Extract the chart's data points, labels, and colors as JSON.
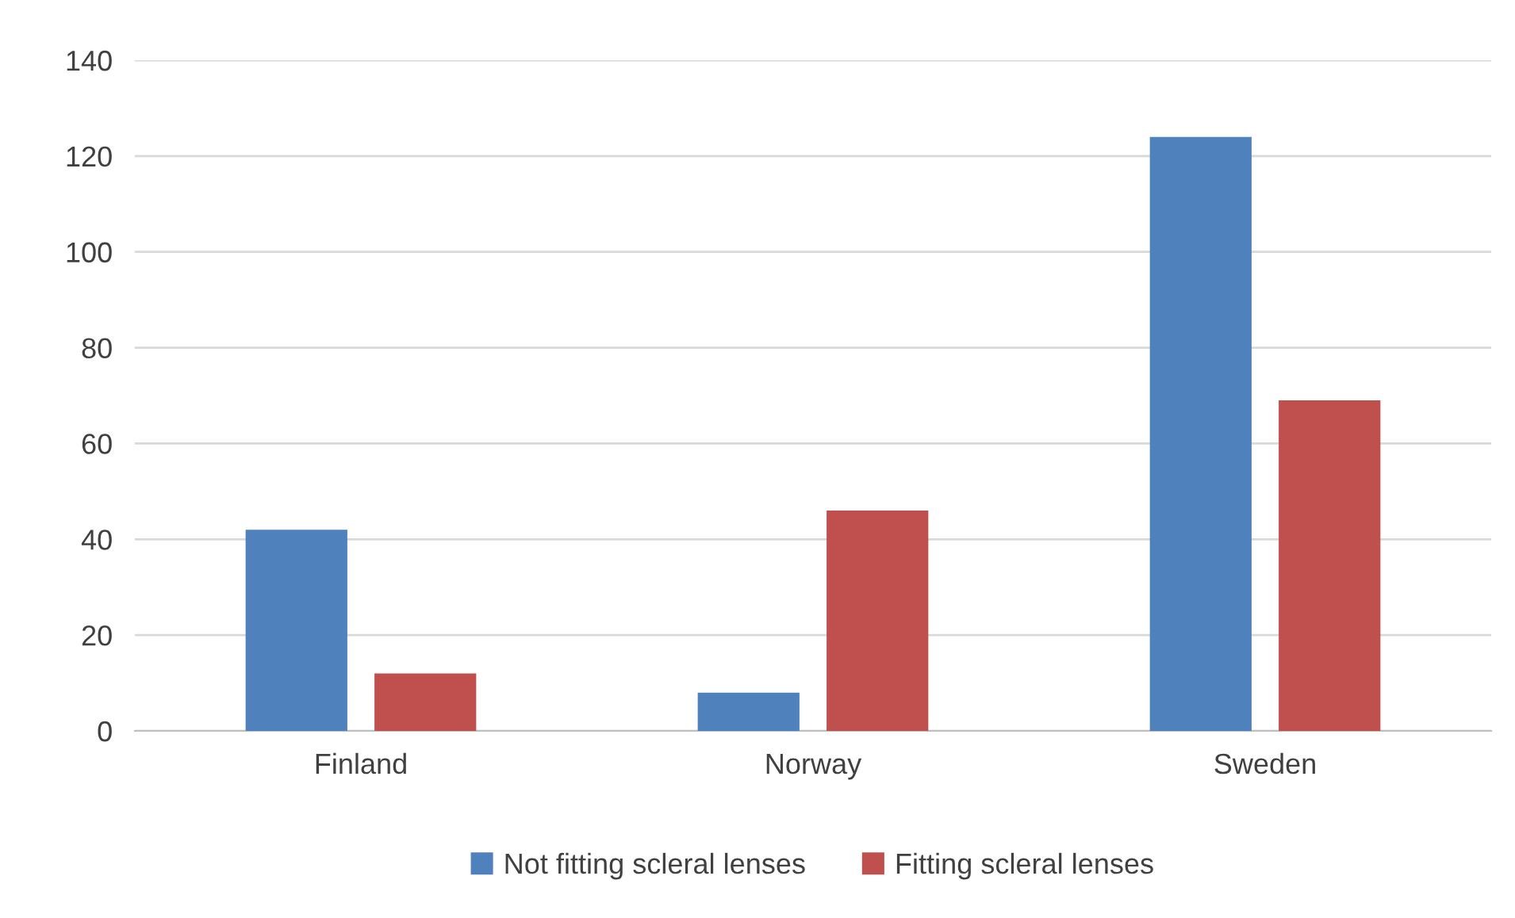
{
  "chart_data": {
    "type": "bar",
    "categories": [
      "Finland",
      "Norway",
      "Sweden"
    ],
    "series": [
      {
        "name": "Not fitting scleral lenses",
        "color": "#4f81bd",
        "values": [
          42,
          8,
          124
        ]
      },
      {
        "name": "Fitting scleral lenses",
        "color": "#c0504d",
        "values": [
          12,
          46,
          69
        ]
      }
    ],
    "ylim": [
      0,
      140
    ],
    "yticks": [
      0,
      20,
      40,
      60,
      80,
      100,
      120,
      140
    ],
    "grid": "y",
    "legend": "bottom"
  }
}
